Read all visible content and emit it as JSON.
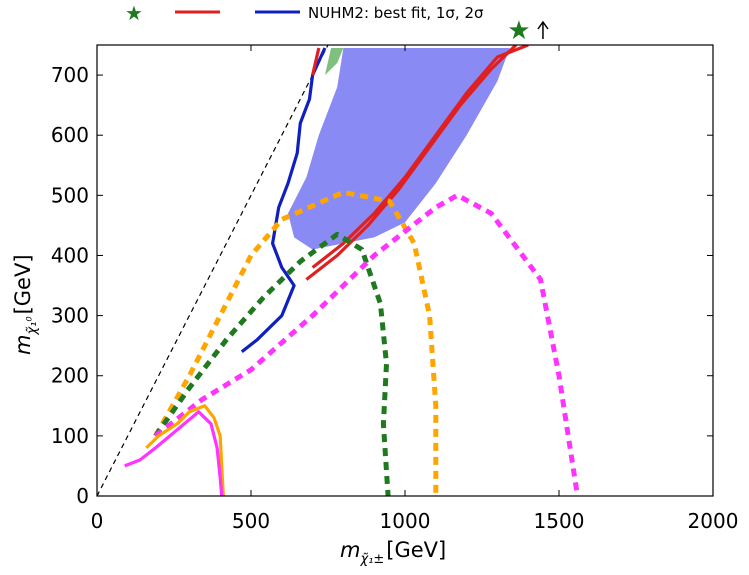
{
  "chart_data": {
    "type": "line",
    "xlim": [
      0,
      2000
    ],
    "ylim": [
      0,
      750
    ],
    "x_ticks": [
      0,
      500,
      1000,
      1500,
      2000
    ],
    "y_ticks": [
      0,
      100,
      200,
      300,
      400,
      500,
      600,
      700
    ],
    "xlabel_main": "m",
    "xlabel_sub": "χ̃₁±",
    "xlabel_unit": "[GeV]",
    "ylabel_main": "m",
    "ylabel_sub": "χ̃₁⁰",
    "ylabel_unit": "[GeV]",
    "legend": {
      "placement": "top",
      "text": "NUHM2: best fit, 1σ, 2σ",
      "entries": [
        {
          "marker": "star",
          "color": "#1f7a1f"
        },
        {
          "marker": "line",
          "color": "#e02020"
        },
        {
          "marker": "line",
          "color": "#1020c0"
        }
      ]
    },
    "best_fit": {
      "x": 1370,
      "y": 750,
      "color": "#1f7a1f",
      "arrow": true
    },
    "diagonal": {
      "points": [
        [
          0,
          0
        ],
        [
          750,
          750
        ]
      ],
      "style": "dashed",
      "color": "#000000"
    },
    "regions": [
      {
        "name": "1sigma-fill",
        "color": "#8a8af5",
        "points": [
          [
            680,
            530
          ],
          [
            720,
            600
          ],
          [
            780,
            680
          ],
          [
            800,
            745
          ],
          [
            1340,
            745
          ],
          [
            1300,
            690
          ],
          [
            1200,
            600
          ],
          [
            1100,
            520
          ],
          [
            1000,
            455
          ],
          [
            900,
            430
          ],
          [
            800,
            420
          ],
          [
            700,
            410
          ],
          [
            640,
            430
          ],
          [
            620,
            470
          ]
        ]
      },
      {
        "name": "green-fill",
        "color": "#7fc07f",
        "points": [
          [
            740,
            700
          ],
          [
            760,
            745
          ],
          [
            800,
            745
          ],
          [
            780,
            720
          ]
        ]
      }
    ],
    "series": [
      {
        "color": "#1020c0",
        "style": "solid",
        "points": [
          [
            470,
            240
          ],
          [
            520,
            260
          ],
          [
            600,
            300
          ],
          [
            640,
            350
          ],
          [
            600,
            380
          ],
          [
            570,
            420
          ],
          [
            590,
            480
          ],
          [
            620,
            520
          ],
          [
            650,
            570
          ],
          [
            660,
            620
          ],
          [
            690,
            660
          ],
          [
            700,
            700
          ],
          [
            740,
            745
          ]
        ]
      },
      {
        "color": "#e02020",
        "style": "solid",
        "points": [
          [
            700,
            700
          ],
          [
            720,
            745
          ]
        ]
      },
      {
        "color": "#e02020",
        "style": "solid",
        "points": [
          [
            700,
            380
          ],
          [
            800,
            420
          ],
          [
            900,
            470
          ],
          [
            1000,
            530
          ],
          [
            1100,
            600
          ],
          [
            1200,
            670
          ],
          [
            1300,
            730
          ],
          [
            1400,
            750
          ]
        ]
      },
      {
        "color": "#e02020",
        "style": "solid",
        "points": [
          [
            680,
            360
          ],
          [
            780,
            400
          ],
          [
            880,
            450
          ],
          [
            980,
            510
          ],
          [
            1080,
            580
          ],
          [
            1180,
            650
          ],
          [
            1280,
            710
          ],
          [
            1360,
            750
          ]
        ]
      },
      {
        "color": "#ffa500",
        "style": "dashed",
        "points": [
          [
            190,
            100
          ],
          [
            300,
            200
          ],
          [
            400,
            300
          ],
          [
            500,
            400
          ],
          [
            600,
            460
          ],
          [
            800,
            505
          ],
          [
            950,
            490
          ],
          [
            1030,
            420
          ],
          [
            1080,
            300
          ],
          [
            1100,
            150
          ],
          [
            1100,
            0
          ]
        ]
      },
      {
        "color": "#1f7a1f",
        "style": "dashed",
        "points": [
          [
            190,
            100
          ],
          [
            300,
            180
          ],
          [
            420,
            260
          ],
          [
            540,
            330
          ],
          [
            660,
            390
          ],
          [
            780,
            435
          ],
          [
            860,
            410
          ],
          [
            920,
            320
          ],
          [
            940,
            220
          ],
          [
            930,
            120
          ],
          [
            945,
            0
          ]
        ]
      },
      {
        "color": "#ff33ff",
        "style": "dashed",
        "points": [
          [
            190,
            100
          ],
          [
            340,
            160
          ],
          [
            500,
            210
          ],
          [
            700,
            300
          ],
          [
            900,
            400
          ],
          [
            1100,
            480
          ],
          [
            1170,
            500
          ],
          [
            1280,
            470
          ],
          [
            1440,
            360
          ],
          [
            1500,
            200
          ],
          [
            1560,
            0
          ]
        ]
      },
      {
        "color": "#ffa500",
        "style": "solid",
        "points": [
          [
            160,
            80
          ],
          [
            200,
            100
          ],
          [
            260,
            120
          ],
          [
            300,
            140
          ],
          [
            350,
            150
          ],
          [
            380,
            130
          ],
          [
            400,
            100
          ],
          [
            405,
            50
          ],
          [
            410,
            0
          ]
        ]
      },
      {
        "color": "#ff33ff",
        "style": "solid",
        "points": [
          [
            90,
            50
          ],
          [
            140,
            60
          ],
          [
            190,
            80
          ],
          [
            260,
            110
          ],
          [
            330,
            140
          ],
          [
            370,
            120
          ],
          [
            390,
            80
          ],
          [
            400,
            30
          ],
          [
            405,
            0
          ]
        ]
      }
    ]
  }
}
